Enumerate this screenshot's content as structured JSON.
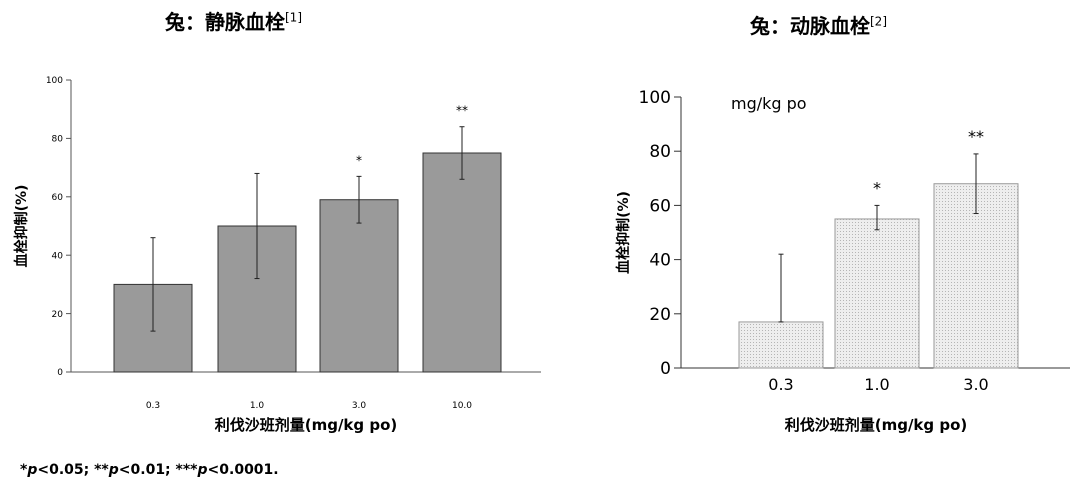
{
  "chart_data": [
    {
      "type": "bar",
      "title": "兔：静脉血栓",
      "title_ref": "[1]",
      "xlabel": "利伐沙班剂量(mg/kg po)",
      "ylabel": "血栓抑制(%)",
      "ylim": [
        0,
        100
      ],
      "yticks": [
        0,
        20,
        40,
        60,
        80,
        100
      ],
      "categories": [
        "0.3",
        "1.0",
        "3.0",
        "10.0"
      ],
      "values": [
        30,
        50,
        59,
        75
      ],
      "error_upper": [
        46,
        68,
        67,
        84
      ],
      "error_lower": [
        14,
        32,
        51,
        66
      ],
      "significance": [
        "",
        "",
        "*",
        "**"
      ],
      "bar_color": "#9a9a9a",
      "grid": false
    },
    {
      "type": "bar",
      "title": "兔：动脉血栓",
      "title_ref": "[2]",
      "xlabel": "利伐沙班剂量(mg/kg po)",
      "ylabel": "血栓抑制(%)",
      "annotation": "mg/kg po",
      "ylim": [
        0,
        100
      ],
      "yticks": [
        0,
        20,
        40,
        60,
        80,
        100
      ],
      "categories": [
        "0.3",
        "1.0",
        "3.0"
      ],
      "values": [
        17,
        55,
        68
      ],
      "error_upper": [
        42,
        60,
        79
      ],
      "error_lower": [
        17,
        51,
        57
      ],
      "significance": [
        "",
        "*",
        "**"
      ],
      "bar_color": "#e3e3e3",
      "grid": false
    }
  ],
  "footnote": {
    "p1": "p",
    "t1": "<0.05; **",
    "p2": "p",
    "t2": "<0.01; ***",
    "p3": "p",
    "t3": "<0.0001.",
    "lead": "*"
  }
}
